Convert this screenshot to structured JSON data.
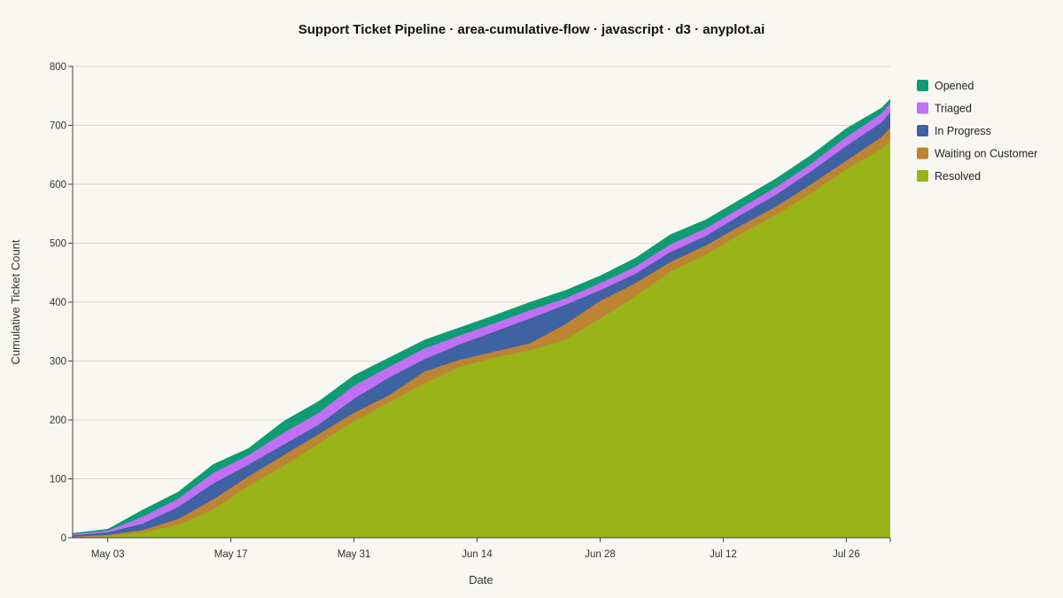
{
  "chart_data": {
    "type": "area",
    "title": "Support Ticket Pipeline · area-cumulative-flow · javascript · d3 · anyplot.ai",
    "xlabel": "Date",
    "ylabel": "Cumulative Ticket Count",
    "ylim": [
      0,
      800
    ],
    "yticks": [
      0,
      100,
      200,
      300,
      400,
      500,
      600,
      700,
      800
    ],
    "xlim": [
      "2024-04-29",
      "2024-07-31"
    ],
    "xticks": [
      {
        "date": "2024-05-03",
        "label": "May 03"
      },
      {
        "date": "2024-05-17",
        "label": "May 17"
      },
      {
        "date": "2024-05-31",
        "label": "May 31"
      },
      {
        "date": "2024-06-14",
        "label": "Jun 14"
      },
      {
        "date": "2024-06-28",
        "label": "Jun 28"
      },
      {
        "date": "2024-07-12",
        "label": "Jul 12"
      },
      {
        "date": "2024-07-26",
        "label": "Jul 26"
      }
    ],
    "grid": true,
    "legend_position": "right",
    "x": [
      "2024-04-29",
      "2024-05-03",
      "2024-05-07",
      "2024-05-11",
      "2024-05-15",
      "2024-05-19",
      "2024-05-23",
      "2024-05-27",
      "2024-05-31",
      "2024-06-04",
      "2024-06-08",
      "2024-06-12",
      "2024-06-16",
      "2024-06-20",
      "2024-06-24",
      "2024-06-28",
      "2024-07-02",
      "2024-07-06",
      "2024-07-10",
      "2024-07-14",
      "2024-07-18",
      "2024-07-22",
      "2024-07-26",
      "2024-07-30",
      "2024-07-31"
    ],
    "stack_order_bottom_to_top": [
      "Resolved",
      "Waiting on Customer",
      "In Progress",
      "Triaged",
      "Opened"
    ],
    "series": [
      {
        "name": "Opened",
        "color": "#0e9c75",
        "values": [
          8,
          15,
          48,
          78,
          125,
          152,
          198,
          232,
          276,
          306,
          336,
          357,
          378,
          400,
          420,
          445,
          475,
          515,
          540,
          575,
          610,
          650,
          695,
          730,
          745
        ]
      },
      {
        "name": "Triaged",
        "color": "#c070f2",
        "values": [
          6,
          12,
          36,
          66,
          110,
          140,
          178,
          212,
          258,
          290,
          321,
          343,
          364,
          386,
          406,
          432,
          460,
          498,
          525,
          560,
          595,
          635,
          680,
          720,
          738
        ]
      },
      {
        "name": "In Progress",
        "color": "#3f62a3",
        "values": [
          4,
          9,
          24,
          52,
          92,
          124,
          158,
          192,
          236,
          272,
          303,
          328,
          350,
          372,
          395,
          420,
          448,
          485,
          512,
          548,
          582,
          622,
          665,
          705,
          722
        ]
      },
      {
        "name": "Waiting on Customer",
        "color": "#bd8433",
        "values": [
          2,
          5,
          13,
          32,
          65,
          104,
          140,
          176,
          212,
          242,
          282,
          302,
          316,
          330,
          362,
          402,
          432,
          468,
          496,
          530,
          562,
          600,
          640,
          680,
          696
        ]
      },
      {
        "name": "Resolved",
        "color": "#99b318",
        "values": [
          0,
          3,
          9,
          22,
          48,
          88,
          122,
          160,
          198,
          230,
          262,
          290,
          306,
          318,
          336,
          372,
          410,
          452,
          480,
          516,
          548,
          585,
          625,
          660,
          672
        ]
      }
    ]
  }
}
